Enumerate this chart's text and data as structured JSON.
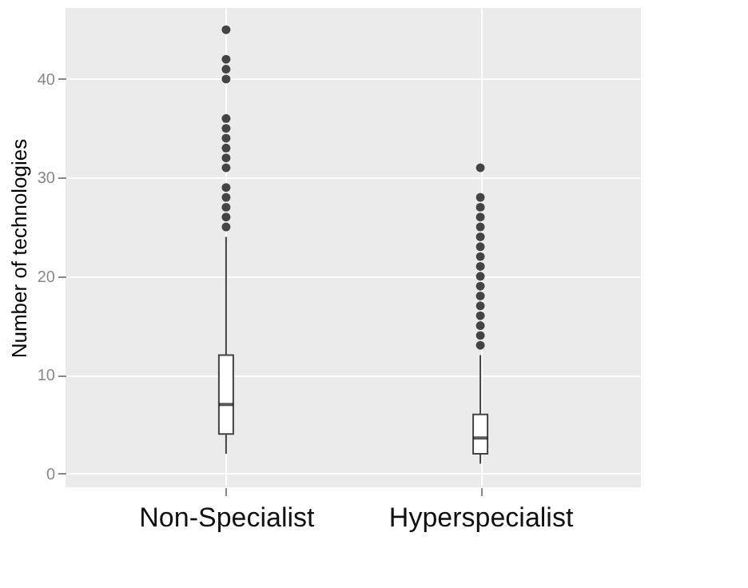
{
  "chart_data": {
    "type": "box",
    "ylabel": "Number of technologies",
    "categories": [
      "Non-Specialist",
      "Hyperspecialist"
    ],
    "boxes": [
      {
        "low": 2,
        "q1": 4,
        "median": 7,
        "q3": 12,
        "high": 24,
        "outliers": [
          25,
          26,
          27,
          28,
          29,
          31,
          32,
          33,
          34,
          35,
          36,
          40,
          41,
          42,
          45
        ]
      },
      {
        "low": 1,
        "q1": 2,
        "median": 3.6,
        "q3": 6,
        "high": 12,
        "outliers": [
          13,
          14,
          15,
          16,
          17,
          18,
          19,
          20,
          21,
          22,
          23,
          24,
          25,
          26,
          27,
          28,
          31
        ]
      }
    ],
    "color": "#444444",
    "ylim": [
      -1.4,
      47.2
    ],
    "yticks": [
      0,
      10,
      20,
      30,
      40
    ],
    "grid": true
  }
}
